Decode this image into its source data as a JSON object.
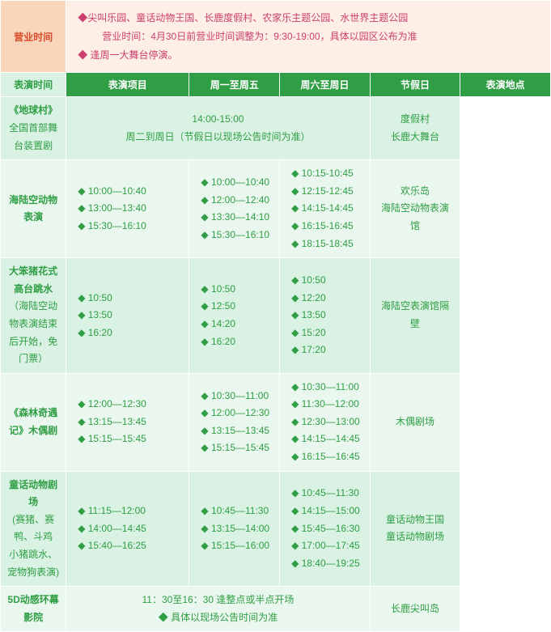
{
  "colors": {
    "green_header_bg": "#2f9e44",
    "green_text": "#2f9e44",
    "light_green_a": "#d9f2e3",
    "light_green_b": "#eaf7ef",
    "peach_label": "#f8d5bb",
    "peach_content": "#fdefe6",
    "red_text": "#d84a2a",
    "magenta_text": "#cc3f6e",
    "border": "#ffffff"
  },
  "business_hours": {
    "label": "营业时间",
    "line1": "◆尖叫乐园、童话动物王国、长鹿度假村、农家乐主题公园、水世界主题公园",
    "line2_indent": "营业时间：4月30日前营业时间调整为：9:30-19:00，具体以园区公布为准",
    "line3": "◆ 逢周一大舞台停演。"
  },
  "headers": {
    "show": "表演项目",
    "weekday": "周一至周五",
    "weekend": "周六至周日",
    "holiday": "节假日",
    "location": "表演地点"
  },
  "shows_label": "表演时间",
  "rows": [
    {
      "name_main": "《地球村》",
      "name_sub": "全国首部舞台装置剧",
      "merged_time_line1": "14:00-15:00",
      "merged_time_line2": "周二到周日（节假日以现场公告时间为准）",
      "location_l1": "度假村",
      "location_l2": "长鹿大舞台",
      "bg": "a"
    },
    {
      "name_main": "海陆空动物表演",
      "weekday": [
        "10:00—10:40",
        "13:00—13:40",
        "15:30—16:10"
      ],
      "weekend": [
        "10:00—10:40",
        "12:00—12:40",
        "13:30—14:10",
        "15:30—16:10"
      ],
      "holiday": [
        "10:15-10:45",
        "12:15-12:45",
        "14:15-14:45",
        "16:15-16:45",
        "18:15-18:45"
      ],
      "location_l1": "欢乐岛",
      "location_l2": "海陆空动物表演馆",
      "bg": "b"
    },
    {
      "name_main": "大笨猪花式高台跳水",
      "name_sub": "（海陆空动物表演结束后开始，免门票）",
      "weekday": [
        "10:50",
        "13:50",
        "16:20"
      ],
      "weekend": [
        "10:50",
        "12:50",
        "14:20",
        "16:20"
      ],
      "holiday": [
        "10:50",
        "12:20",
        "13:50",
        "15:20",
        "17:20"
      ],
      "location_l1": "海陆空表演馆隔壁",
      "bg": "a"
    },
    {
      "name_main": "《森林奇遇记》木偶剧",
      "weekday": [
        "12:00—12:30",
        "13:15—13:45",
        "15:15—15:45"
      ],
      "weekend": [
        "10:30—11:00",
        "12:00—12:30",
        "13:15—13:45",
        "15:15—15:45"
      ],
      "holiday": [
        "10:30—11:00",
        "11:30—12:00",
        "12:30—13:00",
        "14:15—14:45",
        "16:15—16:45"
      ],
      "location_l1": "木偶剧场",
      "bg": "b"
    },
    {
      "name_main": "童话动物剧场",
      "name_sub1": "(赛猪、赛鸭、斗鸡",
      "name_sub2": "小猪跳水、宠物狗表演)",
      "weekday": [
        "11:15—12:00",
        "14:00—14:45",
        "15:40—16:25"
      ],
      "weekend": [
        "10:45—11:30",
        "13:15—14:00",
        "15:15—16:00"
      ],
      "holiday": [
        "10:45—11:30",
        "14:15—15:00",
        "15:45—16:30",
        "17:00—17:45",
        "18:40—19:25"
      ],
      "location_l1": "童话动物王国",
      "location_l2": "童话动物剧场",
      "bg": "a"
    },
    {
      "name_main": "5D动感环幕影院",
      "merged_time_line1": "11：30至16：30 逢整点或半点开场",
      "merged_time_line2": "具体以现场公告时间为准",
      "merged_diamond_line2": true,
      "location_l1": "长鹿尖叫岛",
      "bg": "b"
    }
  ]
}
